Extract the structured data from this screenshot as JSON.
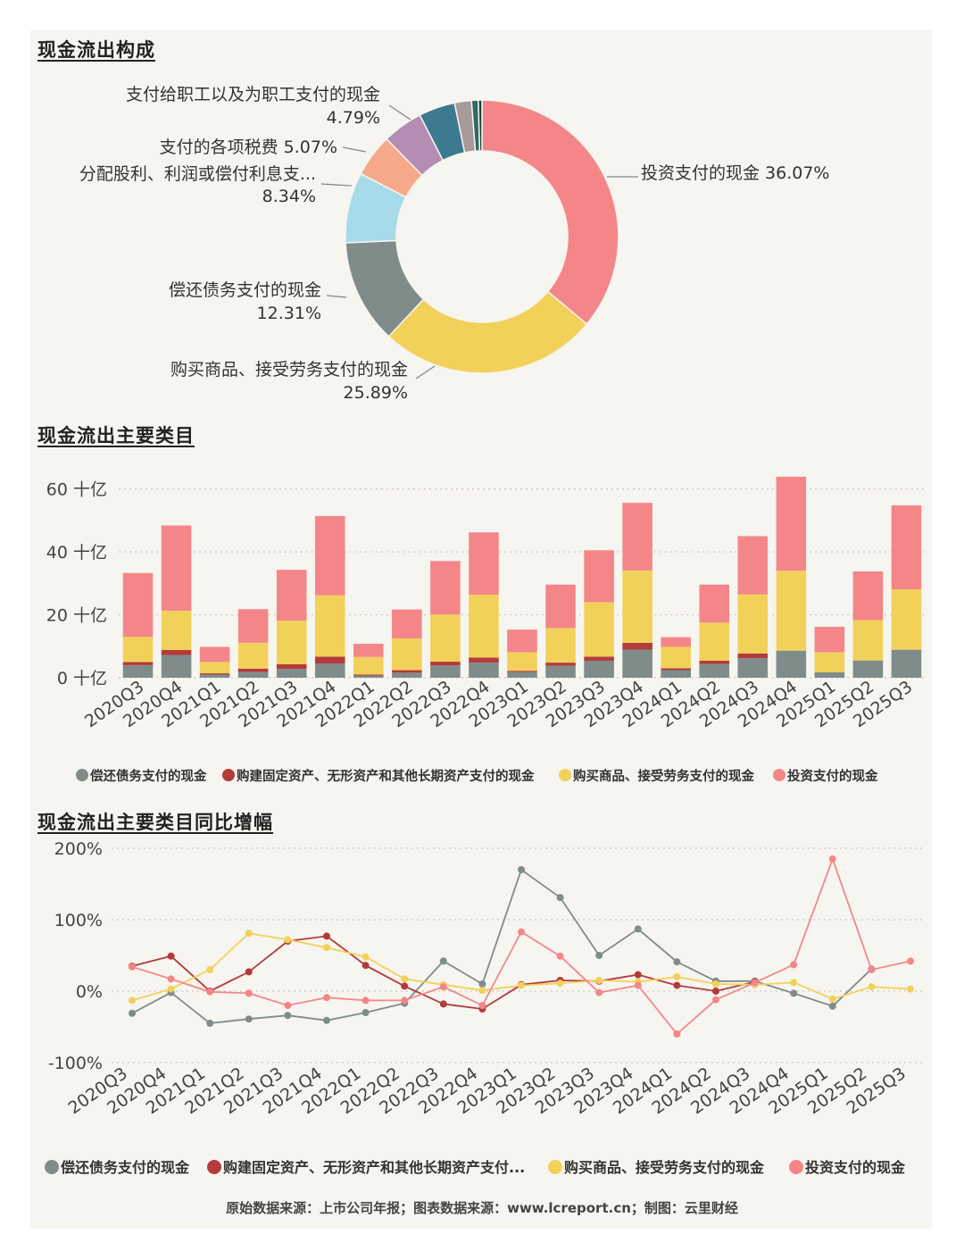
{
  "titles": {
    "donut": "现金流出构成",
    "bar": "现金流出主要类目",
    "line": "现金流出主要类目同比增幅"
  },
  "footer": "原始数据来源：上市公司年报；图表数据来源：www.lcreport.cn；制图：云里财经",
  "colors": {
    "debt": "#7f8c8a",
    "fixed": "#b33b3b",
    "goods": "#f2d15a",
    "invest": "#f4868a"
  },
  "chart_data": [
    {
      "type": "pie",
      "title": "现金流出构成",
      "slices": [
        {
          "name": "投资支付的现金",
          "label": "投资支付的现金",
          "pct_label": "36.07%",
          "value": 36.07,
          "color": "#f4868a"
        },
        {
          "name": "购买商品、接受劳务支付的现金",
          "label": "购买商品、接受劳务支付的现金",
          "pct_label": "25.89%",
          "value": 25.89,
          "color": "#f2d15a"
        },
        {
          "name": "偿还债务支付的现金",
          "label": "偿还债务支付的现金",
          "pct_label": "12.31%",
          "value": 12.31,
          "color": "#7f8c8a"
        },
        {
          "name": "分配股利、利润或偿付利息支...",
          "label": "分配股利、利润或偿付利息支...",
          "pct_label": "8.34%",
          "value": 8.34,
          "color": "#a8dbea"
        },
        {
          "name": "支付的各项税费",
          "label": "支付的各项税费",
          "pct_label": "5.07%",
          "value": 5.07,
          "color": "#f5a98a"
        },
        {
          "name": "支付给职工以及为职工支付的现金",
          "label": "支付给职工以及为职工支付的现金",
          "pct_label": "4.79%",
          "value": 4.79,
          "color": "#b58db3"
        },
        {
          "name": "other1",
          "value": 4.3,
          "color": "#3d7a91"
        },
        {
          "name": "other2",
          "value": 2.0,
          "color": "#a89a9a"
        },
        {
          "name": "other3",
          "value": 0.8,
          "color": "#2e6b60"
        },
        {
          "name": "other4",
          "value": 0.43,
          "color": "#1c3f38"
        }
      ]
    },
    {
      "type": "bar",
      "stacked": true,
      "title": "现金流出主要类目",
      "categories": [
        "2020Q3",
        "2020Q4",
        "2021Q1",
        "2021Q2",
        "2021Q3",
        "2021Q4",
        "2022Q1",
        "2022Q2",
        "2022Q3",
        "2022Q4",
        "2023Q1",
        "2023Q2",
        "2023Q3",
        "2023Q4",
        "2024Q1",
        "2024Q2",
        "2024Q3",
        "2024Q4",
        "2025Q1",
        "2025Q2",
        "2025Q3"
      ],
      "ylim": [
        0,
        65
      ],
      "yticks": [
        0,
        20,
        40,
        60
      ],
      "ytick_labels": [
        "0 十亿",
        "20 十亿",
        "40 十亿",
        "60 十亿"
      ],
      "series": [
        {
          "name": "偿还债务支付的现金",
          "color": "#7f8c8a",
          "values": [
            4.0,
            7.2,
            1.0,
            1.8,
            2.8,
            4.5,
            0.7,
            1.6,
            3.9,
            4.8,
            1.8,
            3.8,
            5.4,
            8.9,
            2.4,
            4.4,
            6.2,
            8.6,
            1.7,
            5.5,
            8.9
          ]
        },
        {
          "name": "购建固定资产、无形资产和其他长期资产支付的现金",
          "color": "#b33b3b",
          "values": [
            1.0,
            1.6,
            0.4,
            1.1,
            1.5,
            2.2,
            0.3,
            0.8,
            1.2,
            1.6,
            0.4,
            1.0,
            1.3,
            2.2,
            0.6,
            1.0,
            1.5,
            0.0,
            0.0,
            0.0,
            0.0
          ]
        },
        {
          "name": "购买商品、接受劳务支付的现金",
          "color": "#f2d15a",
          "values": [
            8.0,
            12.5,
            3.6,
            8.2,
            13.8,
            19.5,
            5.6,
            10.1,
            15.0,
            20.0,
            5.9,
            11.0,
            17.3,
            23.0,
            6.8,
            12.1,
            18.8,
            25.4,
            6.4,
            12.8,
            19.2
          ]
        },
        {
          "name": "投资支付的现金",
          "color": "#f4868a",
          "values": [
            20.3,
            27.1,
            4.8,
            10.7,
            16.2,
            25.2,
            4.2,
            9.2,
            17.0,
            19.8,
            7.2,
            13.8,
            16.5,
            21.5,
            3.1,
            12.1,
            18.5,
            29.9,
            8.1,
            15.5,
            26.7
          ]
        }
      ]
    },
    {
      "type": "line",
      "title": "现金流出主要类目同比增幅",
      "x": [
        "2020Q3",
        "2020Q4",
        "2021Q1",
        "2021Q2",
        "2021Q3",
        "2021Q4",
        "2022Q1",
        "2022Q2",
        "2022Q3",
        "2022Q4",
        "2023Q1",
        "2023Q2",
        "2023Q3",
        "2023Q4",
        "2024Q1",
        "2024Q2",
        "2024Q3",
        "2024Q4",
        "2025Q1",
        "2025Q2",
        "2025Q3"
      ],
      "ylim": [
        -100,
        200
      ],
      "yticks": [
        -100,
        0,
        100,
        200
      ],
      "ytick_labels": [
        "-100%",
        "0%",
        "100%",
        "200%"
      ],
      "series": [
        {
          "name": "偿还债务支付的现金",
          "color": "#7f8c8a",
          "values": [
            -31,
            -2,
            -45,
            -39,
            -34,
            -41,
            -30,
            -17,
            42,
            10,
            170,
            131,
            50,
            87,
            41,
            14,
            14,
            -3,
            -21,
            31,
            null
          ]
        },
        {
          "name": "购建固定资产、无形资产和其他长期资产支付的现金",
          "color": "#b33b3b",
          "values": [
            35,
            49,
            0,
            27,
            70,
            77,
            36,
            7,
            -18,
            -25,
            9,
            15,
            14,
            23,
            8,
            0,
            13,
            null,
            null,
            null,
            null
          ]
        },
        {
          "name": "购买商品、接受劳务支付的现金",
          "color": "#f2d15a",
          "values": [
            -13,
            3,
            30,
            81,
            72,
            61,
            48,
            17,
            9,
            1,
            8,
            11,
            15,
            13,
            20,
            10,
            9,
            12,
            -11,
            6,
            3
          ]
        },
        {
          "name": "投资支付的现金",
          "color": "#f4868a",
          "values": [
            34,
            17,
            -1,
            -3,
            -20,
            -9,
            -13,
            -13,
            6,
            -20,
            83,
            49,
            -2,
            8,
            -60,
            -12,
            12,
            37,
            185,
            30,
            42
          ]
        }
      ]
    }
  ],
  "legends": {
    "bar": [
      "偿还债务支付的现金",
      "购建固定资产、无形资产和其他长期资产支付的现金",
      "购买商品、接受劳务支付的现金",
      "投资支付的现金"
    ],
    "line": [
      "偿还债务支付的现金",
      "购建固定资产、无形资产和其他长期资产支付...",
      "购买商品、接受劳务支付的现金",
      "投资支付的现金"
    ]
  }
}
